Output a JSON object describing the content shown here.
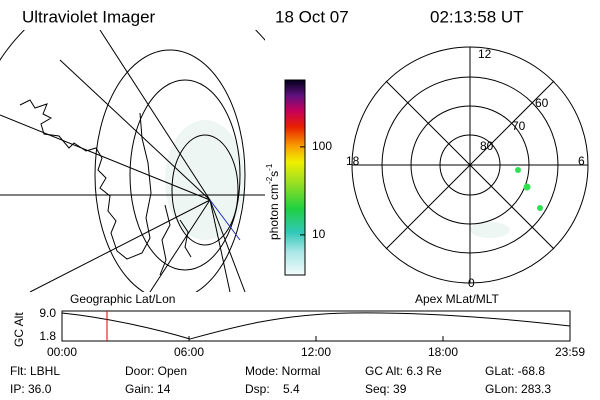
{
  "header": {
    "title": "Ultraviolet Imager",
    "date": "18 Oct 07",
    "time": "02:13:58 UT"
  },
  "colorbar": {
    "unit": "photon cm",
    "exp1": "-2",
    "unit2": "s",
    "exp2": "-1",
    "log": true,
    "range": [
      3.5,
      575
    ],
    "ticks": [
      10,
      100
    ]
  },
  "polar": {
    "labels": {
      "top": "12",
      "bottom": "0",
      "left": "18",
      "right": "6"
    },
    "rings": [
      "80",
      "70",
      "60"
    ]
  },
  "altitude_plot": {
    "ylabel": "GC Alt",
    "yticks": [
      "9.0",
      "1.8"
    ],
    "left_caption": "Geographic Lat/Lon",
    "right_caption": "Apex MLat/MLT",
    "xticks": [
      "00:00",
      "06:00",
      "12:00",
      "18:00",
      "23:59"
    ]
  },
  "footer": {
    "rows": [
      [
        "Flt: LBHL",
        "Door: Open",
        "Mode: Normal",
        "GC Alt: 6.3 Re",
        "GLat: -68.8"
      ],
      [
        "IP: 36.0",
        "Gain: 14",
        "Dsp:    5.4",
        "Seq: 39",
        "GLon: 283.3"
      ]
    ]
  }
}
